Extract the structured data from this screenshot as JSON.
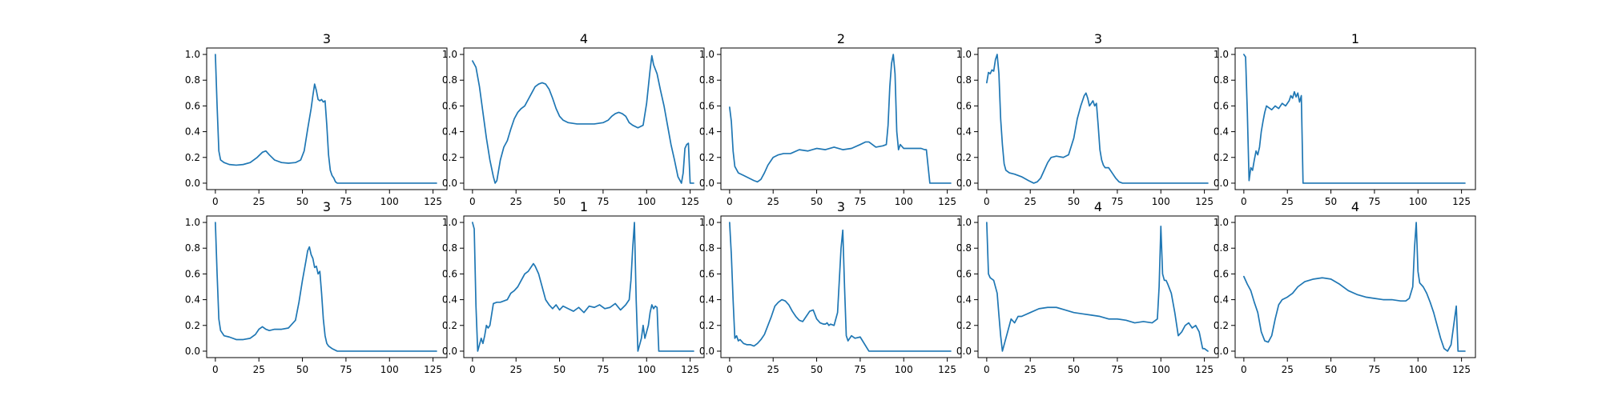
{
  "chart_data": [
    {
      "type": "line",
      "title": "3",
      "xlim": [
        -5,
        133
      ],
      "ylim": [
        -0.05,
        1.05
      ],
      "xticks": [
        0,
        25,
        50,
        75,
        100,
        125
      ],
      "yticks": [
        0.0,
        0.2,
        0.4,
        0.6,
        0.8,
        1.0
      ],
      "x": [
        0,
        1,
        2,
        3,
        5,
        8,
        12,
        16,
        20,
        24,
        27,
        29,
        31,
        34,
        38,
        42,
        46,
        49,
        51,
        53,
        55,
        56,
        57,
        58,
        59,
        60,
        61,
        62,
        63,
        64,
        65,
        66,
        67,
        68,
        69,
        70,
        72,
        75,
        80,
        90,
        100,
        110,
        120,
        127
      ],
      "y": [
        1.0,
        0.6,
        0.25,
        0.18,
        0.16,
        0.145,
        0.14,
        0.145,
        0.16,
        0.2,
        0.24,
        0.25,
        0.22,
        0.18,
        0.16,
        0.155,
        0.16,
        0.18,
        0.25,
        0.42,
        0.58,
        0.68,
        0.77,
        0.72,
        0.65,
        0.64,
        0.65,
        0.63,
        0.64,
        0.45,
        0.22,
        0.1,
        0.06,
        0.04,
        0.01,
        0.0,
        0.0,
        0.0,
        0.0,
        0.0,
        0.0,
        0.0,
        0.0,
        0.0
      ]
    },
    {
      "type": "line",
      "title": "4",
      "xlim": [
        -5,
        133
      ],
      "ylim": [
        -0.05,
        1.05
      ],
      "xticks": [
        0,
        25,
        50,
        75,
        100,
        125
      ],
      "yticks": [
        0.0,
        0.2,
        0.4,
        0.6,
        0.8,
        1.0
      ],
      "x": [
        0,
        2,
        4,
        6,
        8,
        10,
        12,
        13,
        14,
        16,
        18,
        20,
        22,
        24,
        26,
        28,
        30,
        32,
        34,
        36,
        38,
        40,
        42,
        44,
        46,
        48,
        50,
        52,
        55,
        60,
        65,
        70,
        75,
        78,
        80,
        82,
        84,
        86,
        88,
        90,
        92,
        95,
        98,
        100,
        102,
        103,
        104,
        106,
        108,
        110,
        112,
        114,
        116,
        118,
        120,
        121,
        122,
        123,
        124,
        125,
        126,
        127
      ],
      "y": [
        0.95,
        0.9,
        0.75,
        0.55,
        0.35,
        0.18,
        0.05,
        0.0,
        0.02,
        0.18,
        0.28,
        0.33,
        0.42,
        0.5,
        0.55,
        0.58,
        0.6,
        0.65,
        0.7,
        0.75,
        0.77,
        0.78,
        0.77,
        0.73,
        0.66,
        0.58,
        0.52,
        0.49,
        0.47,
        0.46,
        0.46,
        0.46,
        0.47,
        0.49,
        0.52,
        0.54,
        0.55,
        0.54,
        0.52,
        0.47,
        0.45,
        0.43,
        0.45,
        0.62,
        0.88,
        0.99,
        0.92,
        0.85,
        0.72,
        0.6,
        0.45,
        0.3,
        0.18,
        0.05,
        0.0,
        0.08,
        0.27,
        0.3,
        0.31,
        0.0,
        0.0,
        0.0
      ]
    },
    {
      "type": "line",
      "title": "2",
      "xlim": [
        -5,
        133
      ],
      "ylim": [
        -0.05,
        1.05
      ],
      "xticks": [
        0,
        25,
        50,
        75,
        100,
        125
      ],
      "yticks": [
        0.0,
        0.2,
        0.4,
        0.6,
        0.8,
        1.0
      ],
      "x": [
        0,
        1,
        2,
        3,
        5,
        8,
        11,
        14,
        16,
        18,
        20,
        22,
        25,
        28,
        31,
        35,
        40,
        45,
        50,
        55,
        60,
        65,
        70,
        75,
        78,
        80,
        84,
        88,
        90,
        91,
        92,
        93,
        94,
        95,
        96,
        97,
        98,
        100,
        105,
        110,
        112,
        113,
        115,
        120,
        127
      ],
      "y": [
        0.59,
        0.48,
        0.25,
        0.13,
        0.08,
        0.06,
        0.04,
        0.02,
        0.01,
        0.03,
        0.08,
        0.14,
        0.2,
        0.22,
        0.23,
        0.23,
        0.26,
        0.25,
        0.27,
        0.26,
        0.28,
        0.26,
        0.27,
        0.3,
        0.32,
        0.32,
        0.28,
        0.29,
        0.3,
        0.45,
        0.75,
        0.93,
        1.0,
        0.85,
        0.4,
        0.26,
        0.3,
        0.27,
        0.27,
        0.27,
        0.26,
        0.26,
        0.0,
        0.0,
        0.0
      ]
    },
    {
      "type": "line",
      "title": "3",
      "xlim": [
        -5,
        133
      ],
      "ylim": [
        -0.05,
        1.05
      ],
      "xticks": [
        0,
        25,
        50,
        75,
        100,
        125
      ],
      "yticks": [
        0.0,
        0.2,
        0.4,
        0.6,
        0.8,
        1.0
      ],
      "x": [
        0,
        1,
        2,
        3,
        4,
        5,
        6,
        7,
        8,
        9,
        10,
        11,
        13,
        16,
        20,
        24,
        27,
        29,
        31,
        33,
        35,
        37,
        40,
        44,
        47,
        50,
        52,
        54,
        56,
        57,
        58,
        59,
        60,
        61,
        62,
        63,
        64,
        65,
        66,
        67,
        68,
        70,
        72,
        74,
        76,
        78,
        80,
        90,
        100,
        110,
        120,
        127
      ],
      "y": [
        0.78,
        0.86,
        0.85,
        0.88,
        0.87,
        0.96,
        1.0,
        0.85,
        0.5,
        0.3,
        0.15,
        0.1,
        0.08,
        0.07,
        0.05,
        0.02,
        0.0,
        0.01,
        0.04,
        0.1,
        0.16,
        0.2,
        0.21,
        0.2,
        0.22,
        0.35,
        0.5,
        0.6,
        0.68,
        0.7,
        0.66,
        0.6,
        0.62,
        0.64,
        0.6,
        0.62,
        0.45,
        0.26,
        0.18,
        0.14,
        0.12,
        0.12,
        0.08,
        0.04,
        0.01,
        0.0,
        0.0,
        0.0,
        0.0,
        0.0,
        0.0,
        0.0
      ]
    },
    {
      "type": "line",
      "title": "1",
      "xlim": [
        -5,
        133
      ],
      "ylim": [
        -0.05,
        1.05
      ],
      "xticks": [
        0,
        25,
        50,
        75,
        100,
        125
      ],
      "yticks": [
        0.0,
        0.2,
        0.4,
        0.6,
        0.8,
        1.0
      ],
      "x": [
        0,
        1,
        2,
        3,
        4,
        5,
        6,
        7,
        8,
        9,
        10,
        11,
        12,
        13,
        14,
        16,
        18,
        20,
        22,
        24,
        26,
        27,
        28,
        29,
        30,
        31,
        32,
        33,
        34,
        35,
        40,
        50,
        75,
        100,
        127
      ],
      "y": [
        1.0,
        0.98,
        0.55,
        0.02,
        0.12,
        0.1,
        0.18,
        0.25,
        0.22,
        0.28,
        0.4,
        0.48,
        0.55,
        0.6,
        0.59,
        0.57,
        0.6,
        0.58,
        0.62,
        0.6,
        0.64,
        0.68,
        0.66,
        0.71,
        0.67,
        0.7,
        0.63,
        0.68,
        0.0,
        0.0,
        0.0,
        0.0,
        0.0,
        0.0,
        0.0
      ]
    },
    {
      "type": "line",
      "title": "3",
      "xlim": [
        -5,
        133
      ],
      "ylim": [
        -0.05,
        1.05
      ],
      "xticks": [
        0,
        25,
        50,
        75,
        100,
        125
      ],
      "yticks": [
        0.0,
        0.2,
        0.4,
        0.6,
        0.8,
        1.0
      ],
      "x": [
        0,
        1,
        2,
        3,
        5,
        8,
        12,
        16,
        20,
        23,
        25,
        27,
        29,
        31,
        34,
        38,
        42,
        46,
        48,
        50,
        52,
        53,
        54,
        55,
        56,
        57,
        58,
        59,
        60,
        61,
        62,
        63,
        64,
        65,
        67,
        70,
        75,
        80,
        90,
        100,
        110,
        120,
        127
      ],
      "y": [
        1.0,
        0.6,
        0.25,
        0.16,
        0.12,
        0.11,
        0.09,
        0.09,
        0.1,
        0.13,
        0.17,
        0.19,
        0.17,
        0.16,
        0.17,
        0.17,
        0.18,
        0.24,
        0.38,
        0.55,
        0.7,
        0.78,
        0.81,
        0.75,
        0.72,
        0.65,
        0.66,
        0.6,
        0.62,
        0.45,
        0.25,
        0.12,
        0.06,
        0.04,
        0.02,
        0.0,
        0.0,
        0.0,
        0.0,
        0.0,
        0.0,
        0.0,
        0.0
      ]
    },
    {
      "type": "line",
      "title": "1",
      "xlim": [
        -5,
        133
      ],
      "ylim": [
        -0.05,
        1.05
      ],
      "xticks": [
        0,
        25,
        50,
        75,
        100,
        125
      ],
      "yticks": [
        0.0,
        0.2,
        0.4,
        0.6,
        0.8,
        1.0
      ],
      "x": [
        0,
        1,
        2,
        3,
        4,
        5,
        6,
        7,
        8,
        9,
        10,
        12,
        14,
        16,
        18,
        20,
        22,
        24,
        26,
        28,
        30,
        32,
        34,
        35,
        36,
        38,
        40,
        42,
        44,
        46,
        48,
        50,
        52,
        55,
        58,
        61,
        64,
        67,
        70,
        73,
        76,
        79,
        82,
        85,
        88,
        90,
        91,
        92,
        93,
        94,
        95,
        96,
        97,
        98,
        99,
        100,
        101,
        102,
        103,
        104,
        105,
        106,
        107,
        108,
        110,
        120,
        127
      ],
      "y": [
        1.0,
        0.95,
        0.35,
        0.0,
        0.05,
        0.1,
        0.06,
        0.12,
        0.2,
        0.18,
        0.2,
        0.37,
        0.38,
        0.38,
        0.39,
        0.4,
        0.45,
        0.47,
        0.5,
        0.55,
        0.6,
        0.62,
        0.66,
        0.68,
        0.66,
        0.6,
        0.5,
        0.4,
        0.36,
        0.33,
        0.36,
        0.32,
        0.35,
        0.33,
        0.31,
        0.34,
        0.3,
        0.35,
        0.34,
        0.36,
        0.33,
        0.34,
        0.37,
        0.32,
        0.36,
        0.4,
        0.55,
        0.8,
        1.0,
        0.4,
        0.0,
        0.05,
        0.1,
        0.2,
        0.1,
        0.15,
        0.2,
        0.3,
        0.36,
        0.33,
        0.35,
        0.34,
        0.0,
        0.0,
        0.0,
        0.0,
        0.0
      ]
    },
    {
      "type": "line",
      "title": "3",
      "xlim": [
        -5,
        133
      ],
      "ylim": [
        -0.05,
        1.05
      ],
      "xticks": [
        0,
        25,
        50,
        75,
        100,
        125
      ],
      "yticks": [
        0.0,
        0.2,
        0.4,
        0.6,
        0.8,
        1.0
      ],
      "x": [
        0,
        1,
        2,
        3,
        4,
        5,
        6,
        8,
        10,
        12,
        14,
        16,
        18,
        20,
        22,
        24,
        26,
        28,
        30,
        32,
        34,
        36,
        38,
        40,
        42,
        44,
        46,
        48,
        50,
        52,
        54,
        55,
        56,
        57,
        58,
        60,
        62,
        63,
        64,
        65,
        66,
        67,
        68,
        70,
        72,
        75,
        80,
        90,
        100,
        110,
        120,
        127
      ],
      "y": [
        1.0,
        0.75,
        0.4,
        0.1,
        0.12,
        0.08,
        0.09,
        0.06,
        0.05,
        0.05,
        0.04,
        0.06,
        0.09,
        0.13,
        0.2,
        0.27,
        0.35,
        0.38,
        0.4,
        0.39,
        0.36,
        0.31,
        0.27,
        0.24,
        0.23,
        0.27,
        0.31,
        0.32,
        0.25,
        0.22,
        0.21,
        0.21,
        0.22,
        0.2,
        0.21,
        0.2,
        0.3,
        0.55,
        0.8,
        0.94,
        0.5,
        0.12,
        0.08,
        0.12,
        0.1,
        0.11,
        0.0,
        0.0,
        0.0,
        0.0,
        0.0,
        0.0
      ]
    },
    {
      "type": "line",
      "title": "4",
      "xlim": [
        -5,
        133
      ],
      "ylim": [
        -0.05,
        1.05
      ],
      "xticks": [
        0,
        25,
        50,
        75,
        100,
        125
      ],
      "yticks": [
        0.0,
        0.2,
        0.4,
        0.6,
        0.8,
        1.0
      ],
      "x": [
        0,
        1,
        2,
        4,
        6,
        7,
        8,
        9,
        10,
        12,
        14,
        16,
        18,
        20,
        25,
        30,
        35,
        40,
        45,
        50,
        55,
        60,
        65,
        70,
        75,
        80,
        85,
        90,
        95,
        98,
        99,
        100,
        101,
        102,
        103,
        104,
        106,
        108,
        110,
        112,
        114,
        116,
        118,
        120,
        122,
        124,
        125,
        126,
        127
      ],
      "y": [
        1.0,
        0.6,
        0.57,
        0.55,
        0.45,
        0.28,
        0.12,
        0.0,
        0.05,
        0.15,
        0.25,
        0.22,
        0.27,
        0.27,
        0.3,
        0.33,
        0.34,
        0.34,
        0.32,
        0.3,
        0.29,
        0.28,
        0.27,
        0.25,
        0.25,
        0.24,
        0.22,
        0.23,
        0.22,
        0.25,
        0.5,
        0.97,
        0.6,
        0.55,
        0.55,
        0.52,
        0.45,
        0.3,
        0.12,
        0.15,
        0.2,
        0.22,
        0.18,
        0.2,
        0.15,
        0.02,
        0.02,
        0.01,
        0.0
      ]
    },
    {
      "type": "line",
      "title": "4",
      "xlim": [
        -5,
        133
      ],
      "ylim": [
        -0.05,
        1.05
      ],
      "xticks": [
        0,
        25,
        50,
        75,
        100,
        125
      ],
      "yticks": [
        0.0,
        0.2,
        0.4,
        0.6,
        0.8,
        1.0
      ],
      "x": [
        0,
        2,
        4,
        6,
        8,
        10,
        12,
        14,
        16,
        18,
        20,
        22,
        25,
        28,
        31,
        35,
        40,
        45,
        50,
        55,
        60,
        65,
        70,
        75,
        80,
        85,
        90,
        93,
        95,
        97,
        98,
        99,
        100,
        101,
        103,
        105,
        107,
        109,
        111,
        113,
        115,
        117,
        119,
        121,
        122,
        123,
        124,
        127
      ],
      "y": [
        0.58,
        0.52,
        0.47,
        0.38,
        0.3,
        0.15,
        0.08,
        0.07,
        0.12,
        0.25,
        0.36,
        0.4,
        0.42,
        0.45,
        0.5,
        0.54,
        0.56,
        0.57,
        0.56,
        0.52,
        0.47,
        0.44,
        0.42,
        0.41,
        0.4,
        0.4,
        0.39,
        0.39,
        0.41,
        0.5,
        0.8,
        1.0,
        0.62,
        0.53,
        0.5,
        0.45,
        0.38,
        0.3,
        0.2,
        0.1,
        0.02,
        0.0,
        0.05,
        0.25,
        0.35,
        0.0,
        0.0,
        0.0
      ]
    }
  ],
  "style": {
    "line_color": "#1f77b4",
    "axes_color": "#000000",
    "background": "#ffffff"
  }
}
